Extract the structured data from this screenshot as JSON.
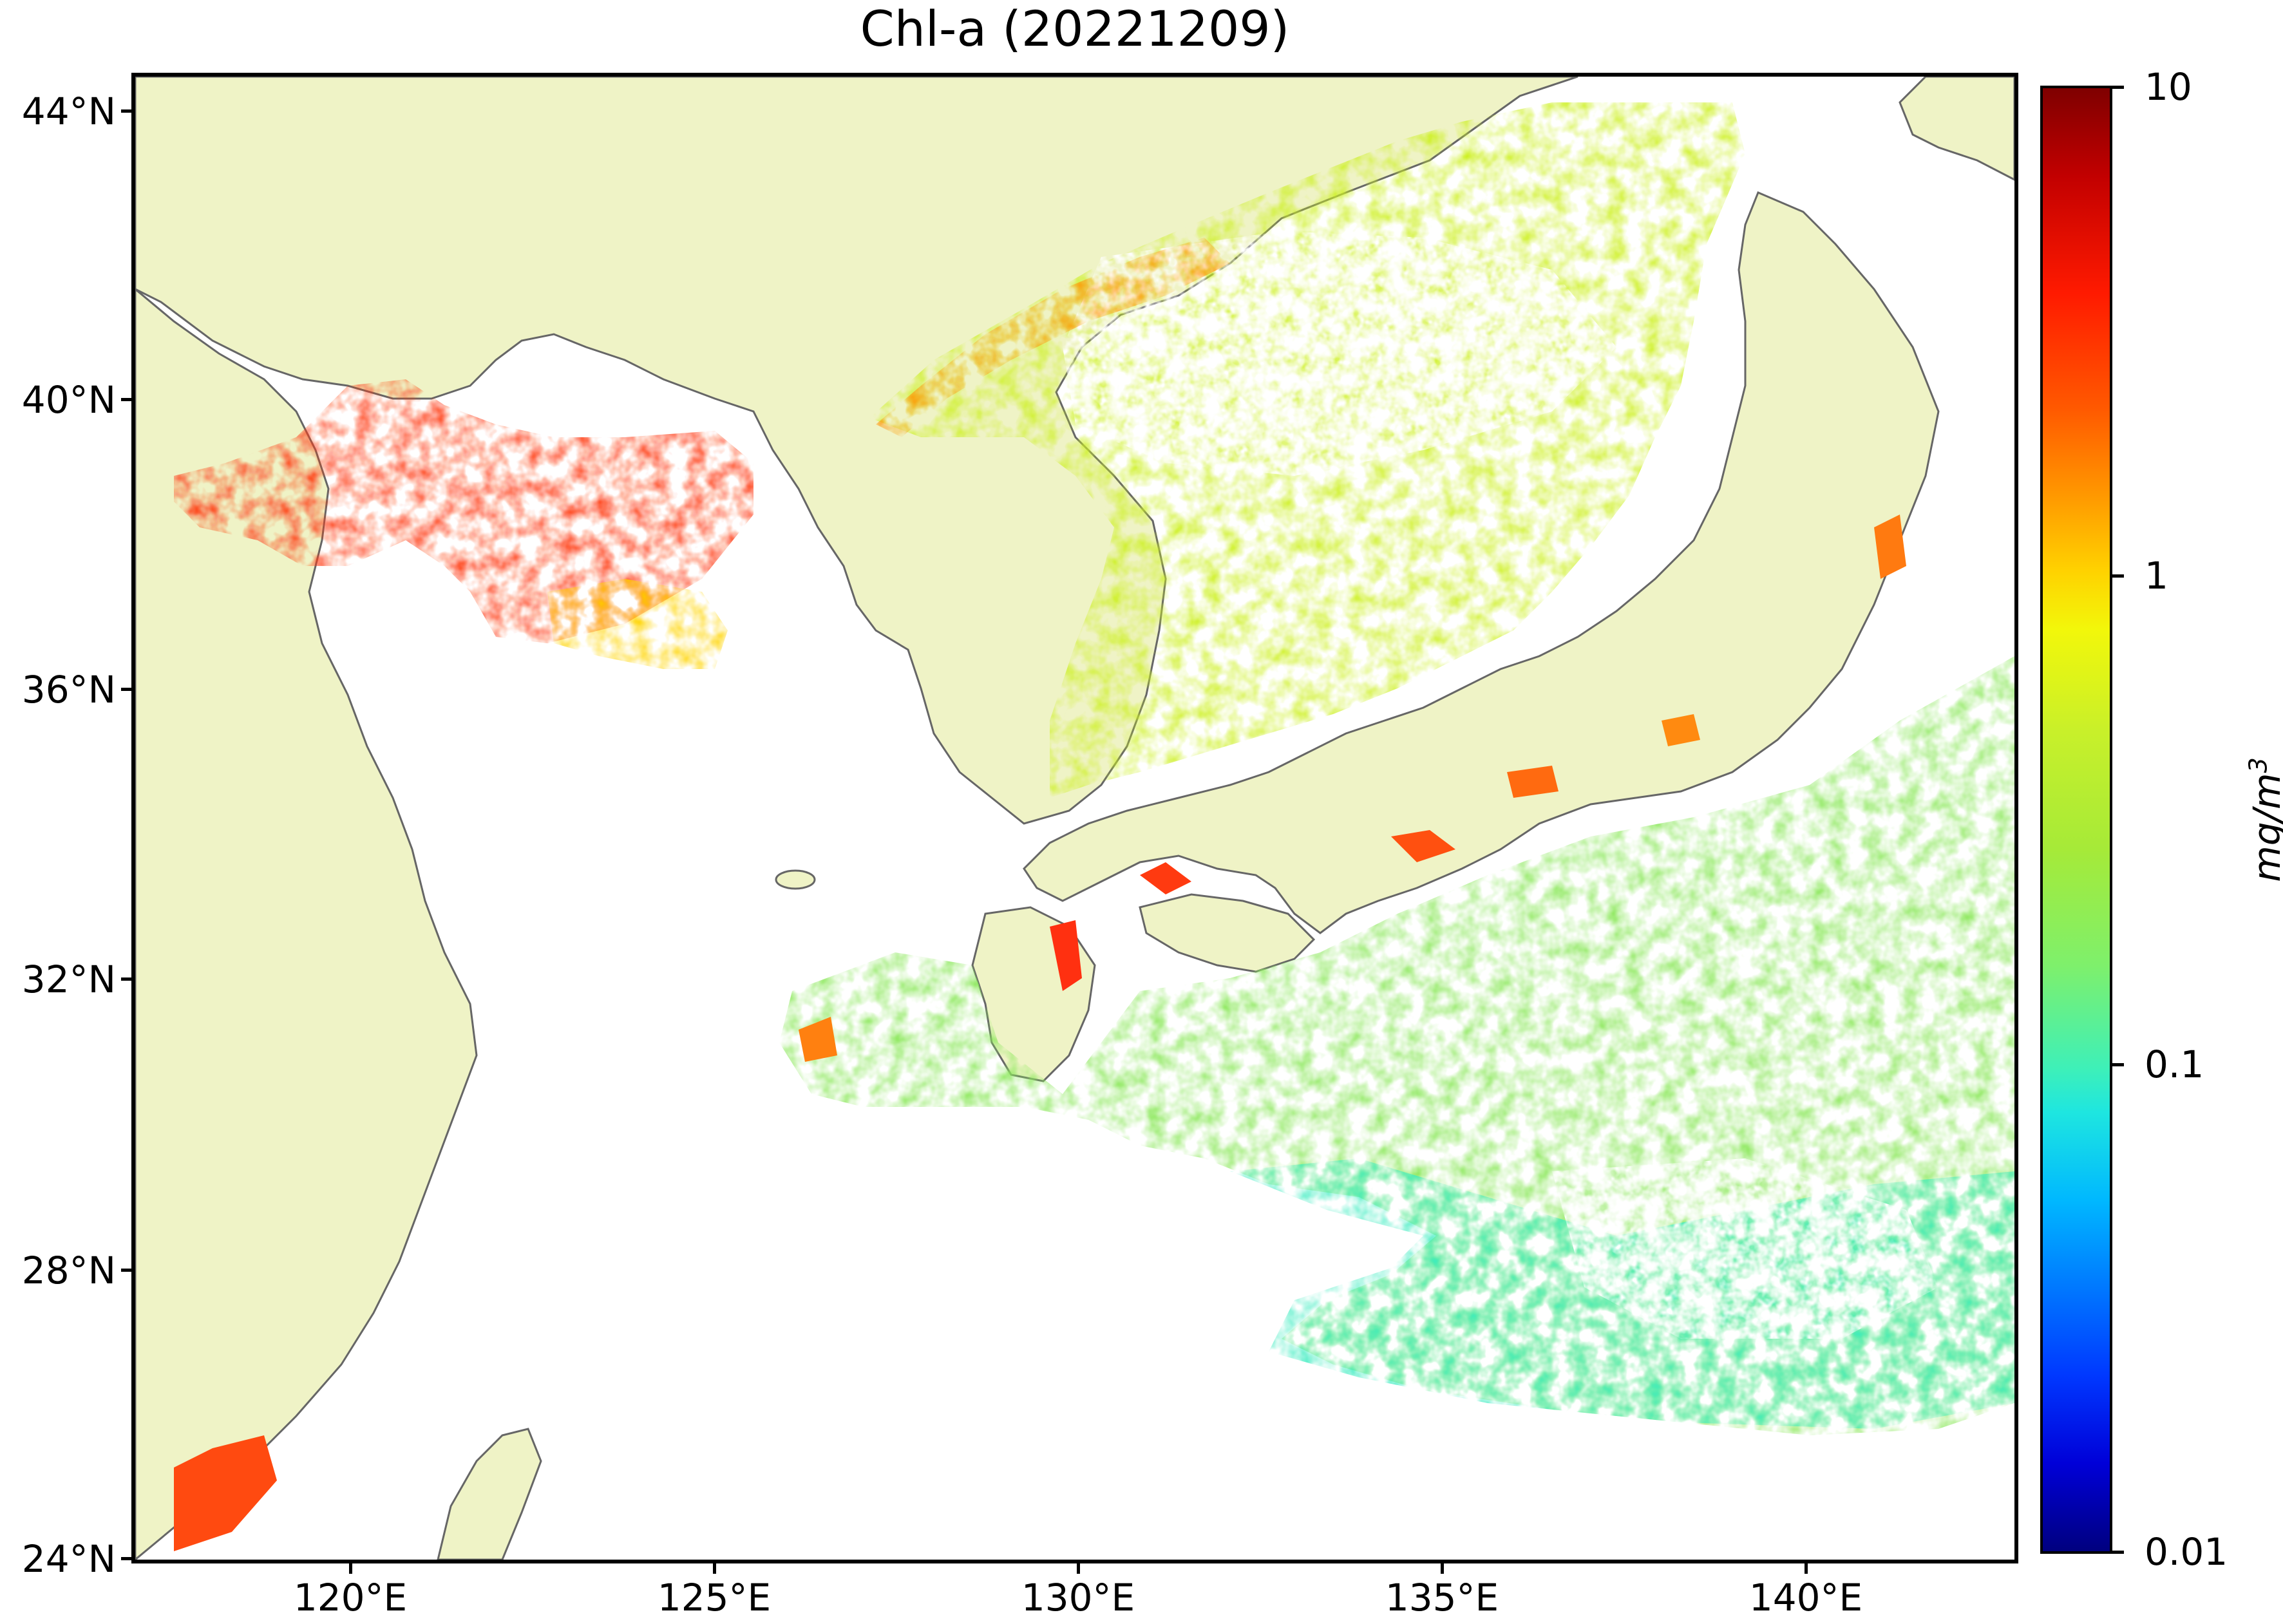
{
  "map": {
    "title": "Chl-a (20221209)",
    "lat_labels": [
      "44°N",
      "40°N",
      "36°N",
      "32°N",
      "28°N",
      "24°N"
    ],
    "lon_labels": [
      "120°E",
      "125°E",
      "130°E",
      "135°E",
      "140°E"
    ],
    "extent": {
      "lon": [
        117,
        143
      ],
      "lat": [
        24,
        44.5
      ]
    },
    "land_color": "#eff3c6",
    "coastline_color": "#666666",
    "no_data_color": "#ffffff"
  },
  "colorbar": {
    "tick_labels": [
      "10",
      "1",
      "0.1",
      "0.01"
    ],
    "scale": "log",
    "range": [
      0.01,
      10
    ],
    "unit_text": "mg/m",
    "unit_exp": "3",
    "colormap": "jet"
  }
}
